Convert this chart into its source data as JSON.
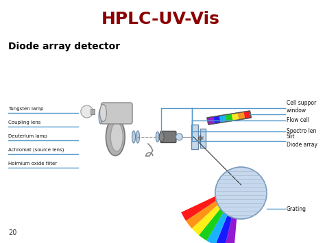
{
  "title": "HPLC-UV-Vis",
  "title_color": "#8B0000",
  "subtitle": "Diode array detector",
  "subtitle_color": "#000000",
  "bg_color": "#ffffff",
  "left_labels": [
    "Tungsten lamp",
    "Coupling lens",
    "Deuterium lamp",
    "Achromat (source lens)",
    "Holmium oxide filter"
  ],
  "right_labels": [
    "Cell suppor\nwindow",
    "Flow cell",
    "Spectro len",
    "Slit",
    "Diode array",
    "Grating"
  ],
  "page_number": "20",
  "line_color": "#5599cc",
  "spectrum_colors": [
    "#8800cc",
    "#0000ff",
    "#00aaff",
    "#00cc00",
    "#ffee00",
    "#ff8800",
    "#ff0000"
  ]
}
